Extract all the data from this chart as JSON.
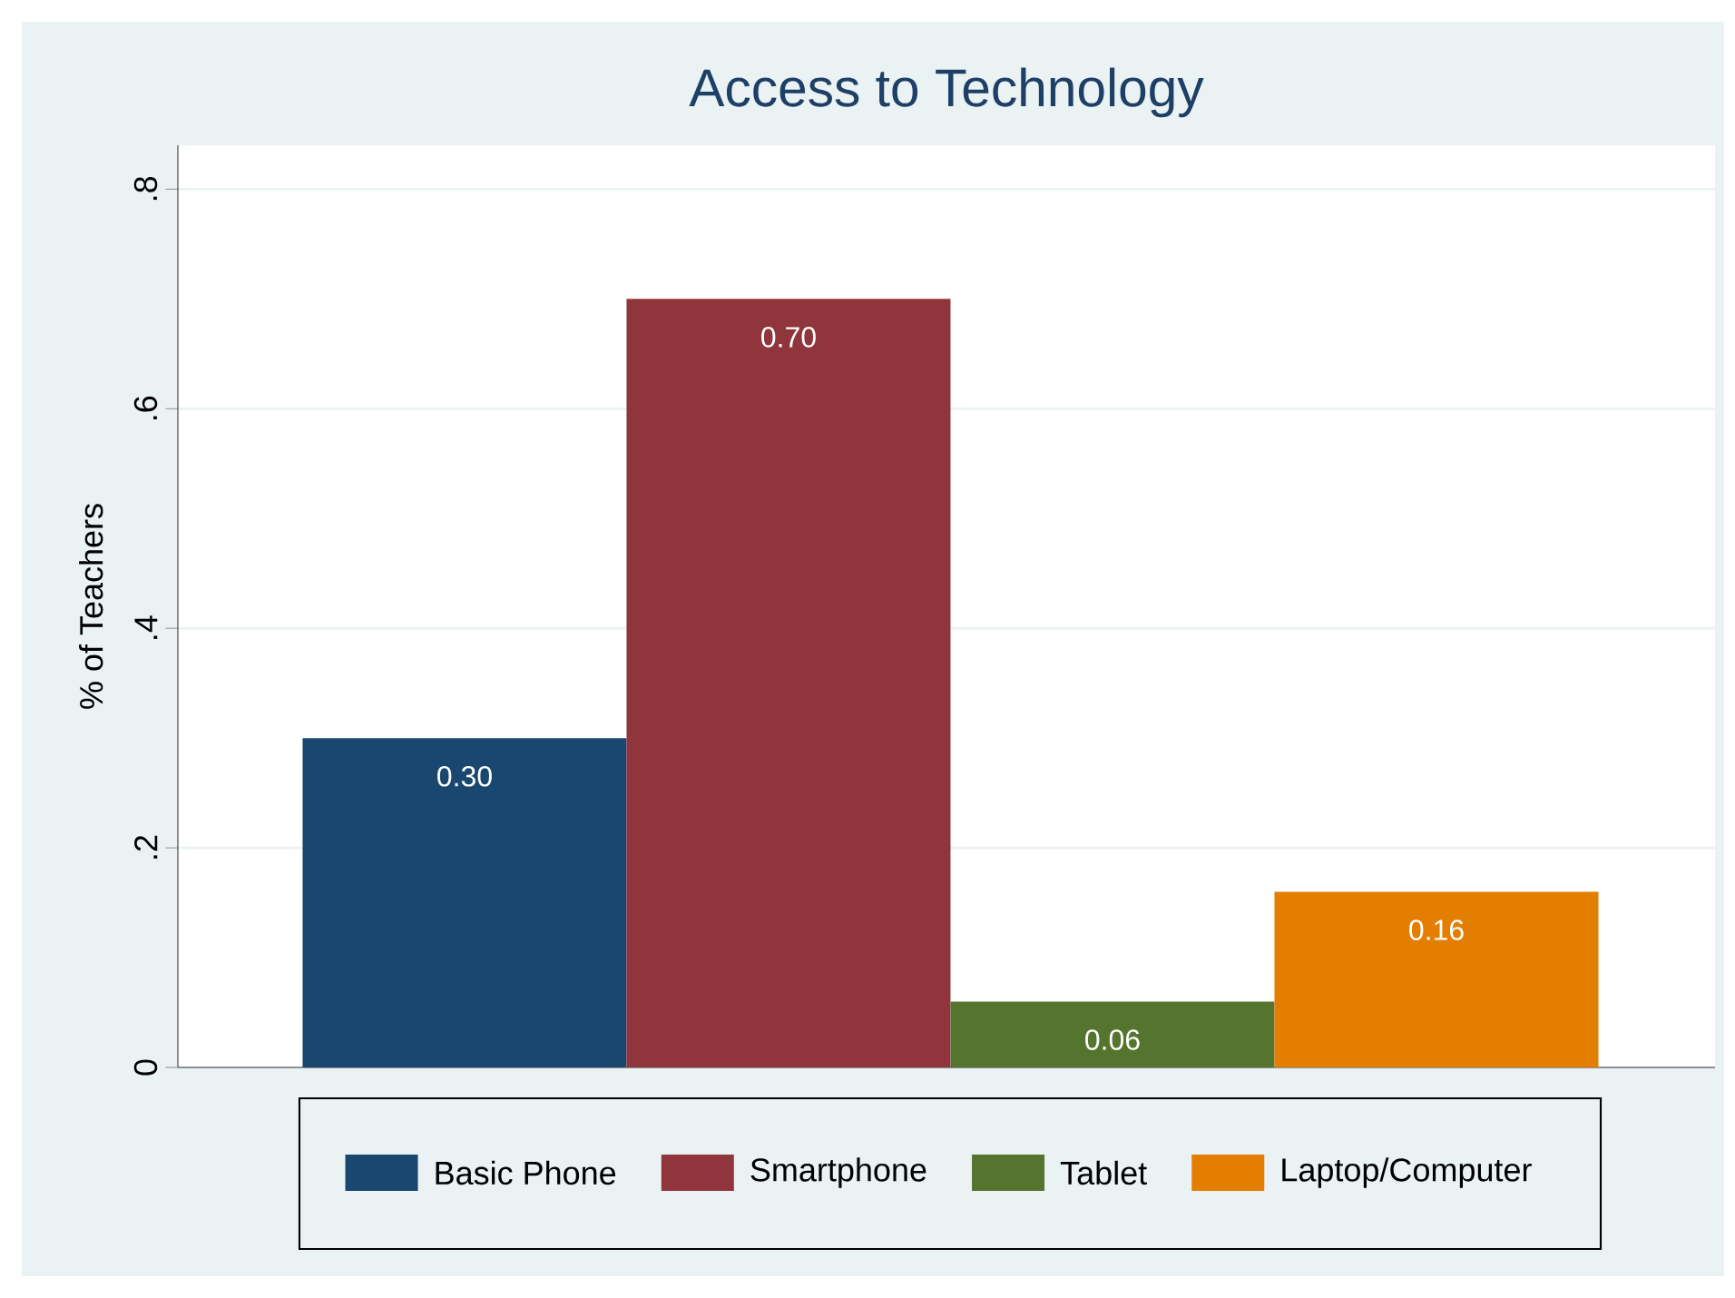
{
  "chart_data": {
    "type": "bar",
    "title": "Access to Technology",
    "ylabel": "% of Teachers",
    "categories": [
      null,
      null,
      null,
      null
    ],
    "series": [
      {
        "name": "Basic Phone",
        "color": "#1a476f",
        "values": [
          0.3,
          null,
          null,
          null
        ],
        "value_labels": [
          "0.30",
          null,
          null,
          null
        ]
      },
      {
        "name": "Smartphone",
        "color": "#90353b",
        "values": [
          null,
          0.7,
          null,
          null
        ],
        "value_labels": [
          null,
          "0.70",
          null,
          null
        ]
      },
      {
        "name": "Tablet",
        "color": "#55752f",
        "values": [
          null,
          null,
          0.06,
          null
        ],
        "value_labels": [
          null,
          null,
          "0.06",
          null
        ]
      },
      {
        "name": "Laptop/Computer",
        "color": "#e37e00",
        "values": [
          null,
          null,
          null,
          0.16
        ],
        "value_labels": [
          null,
          null,
          null,
          "0.16"
        ]
      }
    ],
    "ylim": [
      0,
      0.84
    ],
    "yticks": [
      0,
      {
        "value": 0.2,
        "label": ".2"
      },
      {
        "value": 0.4,
        "label": ".4"
      },
      {
        "value": 0.6,
        "label": ".6"
      },
      {
        "value": 0.8,
        "label": ".8"
      }
    ],
    "grid": "y",
    "legend": "bottom"
  }
}
